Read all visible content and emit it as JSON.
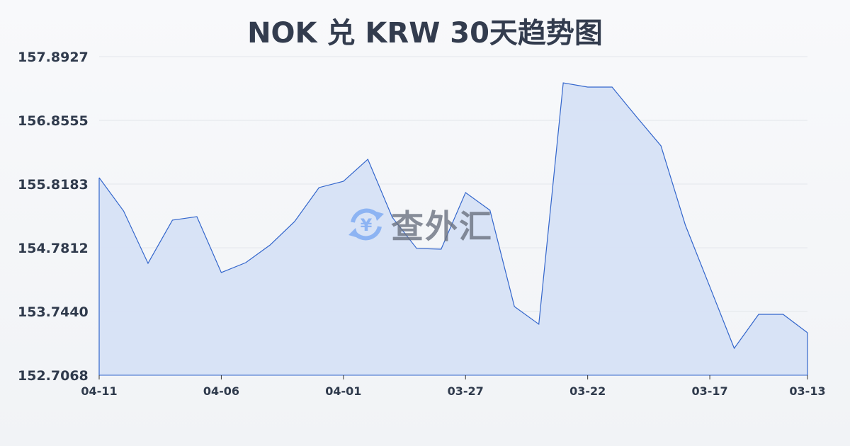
{
  "chart_data": {
    "type": "area",
    "title": "NOK 兑 KRW 30天趋势图",
    "xlabel": "",
    "ylabel": "",
    "ylim": [
      152.7068,
      157.8927
    ],
    "yticks": [
      "157.8927",
      "156.8555",
      "155.8183",
      "154.7812",
      "153.7440",
      "152.7068"
    ],
    "xticks": [
      "04-11",
      "04-06",
      "04-01",
      "03-27",
      "03-22",
      "03-17",
      "03-13"
    ],
    "grid": true,
    "colors": {
      "line": "#3366cc",
      "fill": "#d6e1f5"
    },
    "values": [
      155.922,
      155.38,
      154.528,
      155.231,
      155.288,
      154.378,
      154.539,
      154.827,
      155.208,
      155.761,
      155.864,
      156.222,
      155.277,
      154.77,
      154.758,
      155.68,
      155.392,
      153.825,
      153.537,
      157.466,
      157.397,
      157.397,
      156.913,
      156.441,
      155.15,
      154.148,
      153.145,
      153.698,
      153.698,
      153.398
    ]
  },
  "watermark": {
    "text": "查外汇",
    "icon": "yen-exchange-icon",
    "color": "#7ba7ee"
  }
}
